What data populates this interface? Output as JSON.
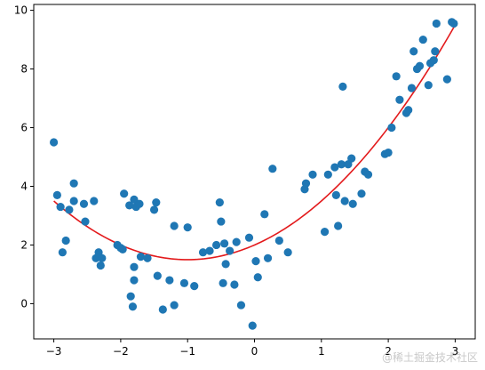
{
  "chart_data": {
    "type": "scatter",
    "title": "",
    "xlabel": "",
    "ylabel": "",
    "xlim": [
      -3.3,
      3.3
    ],
    "ylim": [
      -1.2,
      10.2
    ],
    "grid": false,
    "x_ticks": [
      -3,
      -2,
      -1,
      0,
      1,
      2,
      3
    ],
    "y_ticks": [
      0,
      2,
      4,
      6,
      8,
      10
    ],
    "x_tick_labels": [
      "−3",
      "−2",
      "−1",
      "0",
      "1",
      "2",
      "3"
    ],
    "y_tick_labels": [
      "0",
      "2",
      "4",
      "6",
      "8",
      "10"
    ],
    "colors": {
      "points": "#1f77b4",
      "fit": "#e31a1c",
      "axes": "#000000"
    },
    "series": [
      {
        "kind": "scatter",
        "x": [
          -3.0,
          -2.95,
          -2.9,
          -2.87,
          -2.82,
          -2.77,
          -2.7,
          -2.7,
          -2.55,
          -2.53,
          -2.4,
          -2.37,
          -2.33,
          -2.32,
          -2.3,
          -2.28,
          -2.05,
          -2.0,
          -1.97,
          -1.95,
          -1.87,
          -1.85,
          -1.82,
          -1.8,
          -1.8,
          -1.8,
          -1.77,
          -1.72,
          -1.7,
          -1.6,
          -1.5,
          -1.47,
          -1.45,
          -1.37,
          -1.27,
          -1.2,
          -1.2,
          -1.05,
          -1.0,
          -0.9,
          -0.77,
          -0.67,
          -0.57,
          -0.52,
          -0.5,
          -0.47,
          -0.45,
          -0.43,
          -0.37,
          -0.3,
          -0.27,
          -0.2,
          -0.08,
          -0.03,
          0.02,
          0.05,
          0.15,
          0.2,
          0.27,
          0.37,
          0.5,
          0.75,
          0.77,
          0.87,
          1.05,
          1.1,
          1.2,
          1.22,
          1.25,
          1.3,
          1.32,
          1.35,
          1.4,
          1.45,
          1.47,
          1.6,
          1.65,
          1.7,
          1.95,
          2.0,
          2.05,
          2.12,
          2.17,
          2.27,
          2.3,
          2.35,
          2.38,
          2.43,
          2.47,
          2.52,
          2.6,
          2.63,
          2.68,
          2.7,
          2.72,
          2.88,
          2.95,
          2.98
        ],
        "y": [
          5.5,
          3.7,
          3.3,
          1.75,
          2.15,
          3.2,
          4.1,
          3.5,
          3.4,
          2.8,
          3.5,
          1.55,
          1.75,
          1.6,
          1.3,
          1.55,
          2.0,
          1.9,
          1.85,
          3.75,
          3.35,
          0.25,
          -0.1,
          3.55,
          1.25,
          0.8,
          3.3,
          3.4,
          1.6,
          1.55,
          3.2,
          3.45,
          0.95,
          -0.2,
          0.8,
          2.65,
          -0.05,
          0.7,
          2.6,
          0.6,
          1.75,
          1.8,
          2.0,
          3.45,
          2.8,
          0.7,
          2.05,
          1.35,
          1.8,
          0.65,
          2.1,
          -0.05,
          2.25,
          -0.75,
          1.45,
          0.9,
          3.05,
          1.55,
          4.6,
          2.15,
          1.75,
          3.9,
          4.1,
          4.4,
          2.45,
          4.4,
          4.65,
          3.7,
          2.65,
          4.75,
          7.4,
          3.5,
          4.75,
          4.95,
          3.4,
          3.75,
          4.5,
          4.4,
          5.1,
          5.15,
          6.0,
          7.75,
          6.95,
          6.5,
          6.6,
          7.35,
          8.6,
          8.0,
          8.1,
          9.0,
          7.45,
          8.2,
          8.3,
          8.6,
          9.55,
          7.65,
          9.6,
          9.55
        ]
      },
      {
        "kind": "line",
        "equation": "y = 0.5x^2 + x + 2",
        "x_range": [
          -3.0,
          3.0
        ]
      }
    ]
  },
  "watermark": "@稀土掘金技术社区"
}
